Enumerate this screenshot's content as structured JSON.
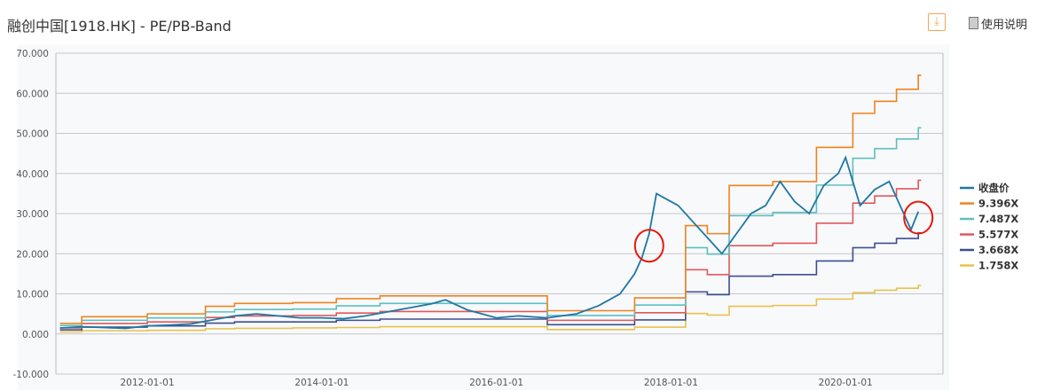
{
  "header": {
    "title": "融创中国[1918.HK] - PE/PB-Band",
    "download_icon": "download-icon",
    "help_label": "使用说明",
    "help_icon": "document-icon"
  },
  "chart_data": {
    "type": "line",
    "title": "",
    "ylim": [
      -10,
      70
    ],
    "yticks": [
      "70.000",
      "60.000",
      "50.000",
      "40.000",
      "30.000",
      "20.000",
      "10.000",
      "0.000",
      "-10.000"
    ],
    "ytick_values": [
      70,
      60,
      50,
      40,
      30,
      20,
      10,
      0,
      -10
    ],
    "xlim": [
      "2010-12",
      "2020-12"
    ],
    "xticks": [
      "2012-01-01",
      "2014-01-01",
      "2016-01-01",
      "2018-01-01",
      "2020-01-01"
    ],
    "grid": "horizontal",
    "legend_position": "right",
    "series": [
      {
        "name": "收盘价",
        "color": "#1f77a4",
        "kind": "line",
        "x": [
          "2011-01",
          "2011-04",
          "2011-07",
          "2011-10",
          "2012-01",
          "2012-04",
          "2012-07",
          "2012-10",
          "2013-01",
          "2013-04",
          "2013-07",
          "2013-10",
          "2014-01",
          "2014-04",
          "2014-07",
          "2014-10",
          "2015-01",
          "2015-04",
          "2015-06",
          "2015-09",
          "2016-01",
          "2016-04",
          "2016-08",
          "2016-12",
          "2017-03",
          "2017-06",
          "2017-08",
          "2017-09",
          "2017-10",
          "2017-11",
          "2017-12",
          "2018-02",
          "2018-04",
          "2018-06",
          "2018-08",
          "2018-10",
          "2018-12",
          "2019-02",
          "2019-04",
          "2019-06",
          "2019-08",
          "2019-10",
          "2019-12",
          "2020-01",
          "2020-03",
          "2020-05",
          "2020-07",
          "2020-09",
          "2020-10",
          "2020-11"
        ],
        "y": [
          1.5,
          1.8,
          1.6,
          1.4,
          2.0,
          2.2,
          2.5,
          3.5,
          4.5,
          5.0,
          4.5,
          4.0,
          4.0,
          3.8,
          4.5,
          5.5,
          6.5,
          7.5,
          8.5,
          6.0,
          4.0,
          4.5,
          4.0,
          5.0,
          7.0,
          10.0,
          15.0,
          19.0,
          25.0,
          35.0,
          34.0,
          32.0,
          28.0,
          24.0,
          20.0,
          25.0,
          30.0,
          32.0,
          38.0,
          33.0,
          30.0,
          37.0,
          40.0,
          44.0,
          32.0,
          36.0,
          38.0,
          30.0,
          26.0,
          30.5
        ]
      },
      {
        "name": "9.396X",
        "color": "#f0821e",
        "kind": "step",
        "x": [
          "2011-01",
          "2011-04",
          "2012-01",
          "2012-09",
          "2013-01",
          "2013-09",
          "2014-03",
          "2014-09",
          "2016-08",
          "2017-08",
          "2018-03",
          "2018-06",
          "2018-09",
          "2019-03",
          "2019-09",
          "2020-02",
          "2020-05",
          "2020-08",
          "2020-11"
        ],
        "y": [
          2.6,
          4.3,
          5.0,
          6.9,
          7.6,
          7.8,
          8.8,
          9.5,
          5.8,
          9.0,
          27.0,
          25.0,
          37.0,
          38.0,
          46.5,
          55.0,
          58.0,
          61.0,
          64.5
        ]
      },
      {
        "name": "7.487X",
        "color": "#5bc0be",
        "kind": "step",
        "x": [
          "2011-01",
          "2011-04",
          "2012-01",
          "2012-09",
          "2013-01",
          "2013-09",
          "2014-03",
          "2014-09",
          "2016-08",
          "2017-08",
          "2018-03",
          "2018-06",
          "2018-09",
          "2019-03",
          "2019-09",
          "2020-02",
          "2020-05",
          "2020-08",
          "2020-11"
        ],
        "y": [
          2.1,
          3.4,
          4.0,
          5.5,
          6.1,
          6.2,
          7.0,
          7.6,
          4.6,
          7.2,
          21.5,
          19.9,
          29.5,
          30.3,
          37.1,
          43.8,
          46.2,
          48.6,
          51.4
        ]
      },
      {
        "name": "5.577X",
        "color": "#e0585b",
        "kind": "step",
        "x": [
          "2011-01",
          "2011-04",
          "2012-01",
          "2012-09",
          "2013-01",
          "2013-09",
          "2014-03",
          "2014-09",
          "2016-08",
          "2017-08",
          "2018-03",
          "2018-06",
          "2018-09",
          "2019-03",
          "2019-09",
          "2020-02",
          "2020-05",
          "2020-08",
          "2020-11"
        ],
        "y": [
          1.5,
          2.6,
          3.0,
          4.1,
          4.5,
          4.6,
          5.2,
          5.6,
          3.4,
          5.3,
          16.0,
          14.8,
          22.0,
          22.6,
          27.6,
          32.6,
          34.4,
          36.2,
          38.3
        ]
      },
      {
        "name": "3.668X",
        "color": "#3d4f8f",
        "kind": "step",
        "x": [
          "2011-01",
          "2011-04",
          "2012-01",
          "2012-09",
          "2013-01",
          "2013-09",
          "2014-03",
          "2014-09",
          "2016-08",
          "2017-08",
          "2018-03",
          "2018-06",
          "2018-09",
          "2019-03",
          "2019-09",
          "2020-02",
          "2020-05",
          "2020-08",
          "2020-11"
        ],
        "y": [
          1.0,
          1.7,
          2.0,
          2.7,
          3.0,
          3.0,
          3.4,
          3.7,
          2.3,
          3.5,
          10.5,
          9.8,
          14.4,
          14.8,
          18.2,
          21.5,
          22.6,
          23.8,
          25.2
        ]
      },
      {
        "name": "1.758X",
        "color": "#e8c24a",
        "kind": "step",
        "x": [
          "2011-01",
          "2011-04",
          "2012-01",
          "2012-09",
          "2013-01",
          "2013-09",
          "2014-03",
          "2014-09",
          "2016-08",
          "2017-08",
          "2018-03",
          "2018-06",
          "2018-09",
          "2019-03",
          "2019-09",
          "2020-02",
          "2020-05",
          "2020-08",
          "2020-11"
        ],
        "y": [
          0.5,
          0.8,
          0.9,
          1.3,
          1.4,
          1.5,
          1.6,
          1.8,
          1.1,
          1.7,
          5.1,
          4.7,
          6.9,
          7.1,
          8.7,
          10.3,
          10.9,
          11.4,
          12.1
        ]
      }
    ],
    "annotations": [
      {
        "type": "circle",
        "color": "#e8180c",
        "x": "2017-10",
        "y": 22
      },
      {
        "type": "circle",
        "color": "#e8180c",
        "x": "2020-11",
        "y": 29
      }
    ]
  }
}
